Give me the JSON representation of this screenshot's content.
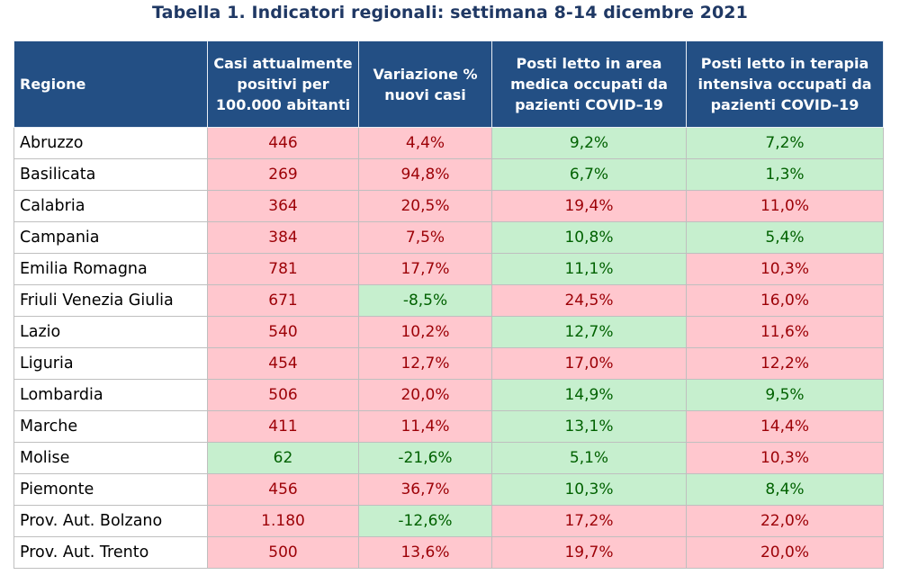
{
  "title": "Tabella 1. Indicatori regionali: settimana 8-14 dicembre 2021",
  "headers": [
    "Regione",
    "Casi attualmente positivi per 100.000 abitanti",
    "Variazione % nuovi casi",
    "Posti letto in area medica occupati da pazienti COVID–19",
    "Posti letto in terapia intensiva occupati da pazienti COVID–19"
  ],
  "colors": {
    "header_bg": "#234f84",
    "title": "#1f3864",
    "red_bg": "#ffc7ce",
    "red_text": "#9c0006",
    "green_bg": "#c6efce",
    "green_text": "#006100"
  },
  "rows": [
    {
      "region": "Abruzzo",
      "cases": "446",
      "variation": "4,4%",
      "medical": "9,2%",
      "icu": "7,2%",
      "status": [
        "red",
        "red",
        "green",
        "green"
      ]
    },
    {
      "region": "Basilicata",
      "cases": "269",
      "variation": "94,8%",
      "medical": "6,7%",
      "icu": "1,3%",
      "status": [
        "red",
        "red",
        "green",
        "green"
      ]
    },
    {
      "region": "Calabria",
      "cases": "364",
      "variation": "20,5%",
      "medical": "19,4%",
      "icu": "11,0%",
      "status": [
        "red",
        "red",
        "red",
        "red"
      ]
    },
    {
      "region": "Campania",
      "cases": "384",
      "variation": "7,5%",
      "medical": "10,8%",
      "icu": "5,4%",
      "status": [
        "red",
        "red",
        "green",
        "green"
      ]
    },
    {
      "region": "Emilia Romagna",
      "cases": "781",
      "variation": "17,7%",
      "medical": "11,1%",
      "icu": "10,3%",
      "status": [
        "red",
        "red",
        "green",
        "red"
      ]
    },
    {
      "region": "Friuli Venezia Giulia",
      "cases": "671",
      "variation": "-8,5%",
      "medical": "24,5%",
      "icu": "16,0%",
      "status": [
        "red",
        "green",
        "red",
        "red"
      ]
    },
    {
      "region": "Lazio",
      "cases": "540",
      "variation": "10,2%",
      "medical": "12,7%",
      "icu": "11,6%",
      "status": [
        "red",
        "red",
        "green",
        "red"
      ]
    },
    {
      "region": "Liguria",
      "cases": "454",
      "variation": "12,7%",
      "medical": "17,0%",
      "icu": "12,2%",
      "status": [
        "red",
        "red",
        "red",
        "red"
      ]
    },
    {
      "region": "Lombardia",
      "cases": "506",
      "variation": "20,0%",
      "medical": "14,9%",
      "icu": "9,5%",
      "status": [
        "red",
        "red",
        "green",
        "green"
      ]
    },
    {
      "region": "Marche",
      "cases": "411",
      "variation": "11,4%",
      "medical": "13,1%",
      "icu": "14,4%",
      "status": [
        "red",
        "red",
        "green",
        "red"
      ]
    },
    {
      "region": "Molise",
      "cases": "62",
      "variation": "-21,6%",
      "medical": "5,1%",
      "icu": "10,3%",
      "status": [
        "green",
        "green",
        "green",
        "red"
      ]
    },
    {
      "region": "Piemonte",
      "cases": "456",
      "variation": "36,7%",
      "medical": "10,3%",
      "icu": "8,4%",
      "status": [
        "red",
        "red",
        "green",
        "green"
      ]
    },
    {
      "region": "Prov. Aut. Bolzano",
      "cases": "1.180",
      "variation": "-12,6%",
      "medical": "17,2%",
      "icu": "22,0%",
      "status": [
        "red",
        "green",
        "red",
        "red"
      ]
    },
    {
      "region": "Prov. Aut. Trento",
      "cases": "500",
      "variation": "13,6%",
      "medical": "19,7%",
      "icu": "20,0%",
      "status": [
        "red",
        "red",
        "red",
        "red"
      ]
    }
  ]
}
